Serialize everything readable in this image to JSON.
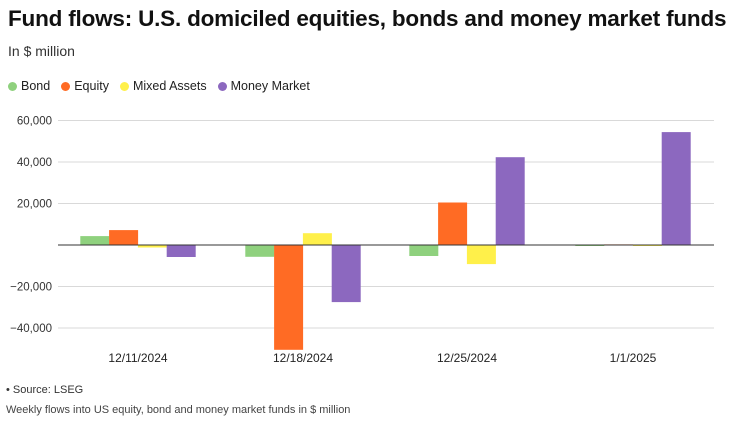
{
  "title": "Fund flows: U.S. domiciled equities, bonds and money market funds",
  "subtitle": "In $ million",
  "source": "• Source: LSEG",
  "note": "Weekly flows into US equity, bond and money market funds in $ million",
  "chart_data": {
    "type": "bar",
    "categories": [
      "12/11/2024",
      "12/18/2024",
      "12/25/2024",
      "1/1/2025"
    ],
    "series": [
      {
        "name": "Bond",
        "color": "#8fd17e",
        "values": [
          4300,
          -5700,
          -5300,
          -500
        ]
      },
      {
        "name": "Equity",
        "color": "#ff6b24",
        "values": [
          7200,
          -50500,
          20500,
          300
        ]
      },
      {
        "name": "Mixed Assets",
        "color": "#fff04a",
        "values": [
          -1200,
          5700,
          -9200,
          -300
        ]
      },
      {
        "name": "Money Market",
        "color": "#8c68bf",
        "values": [
          -5800,
          -27500,
          42300,
          54400
        ]
      }
    ],
    "ylim": [
      -50000,
      60000
    ],
    "yticks": [
      -40000,
      -20000,
      0,
      20000,
      40000,
      60000
    ],
    "ytick_labels": [
      "−40,000",
      "−20,000",
      "",
      "20,000",
      "40,000",
      "60,000"
    ],
    "grid": true,
    "legend": "top-left"
  }
}
